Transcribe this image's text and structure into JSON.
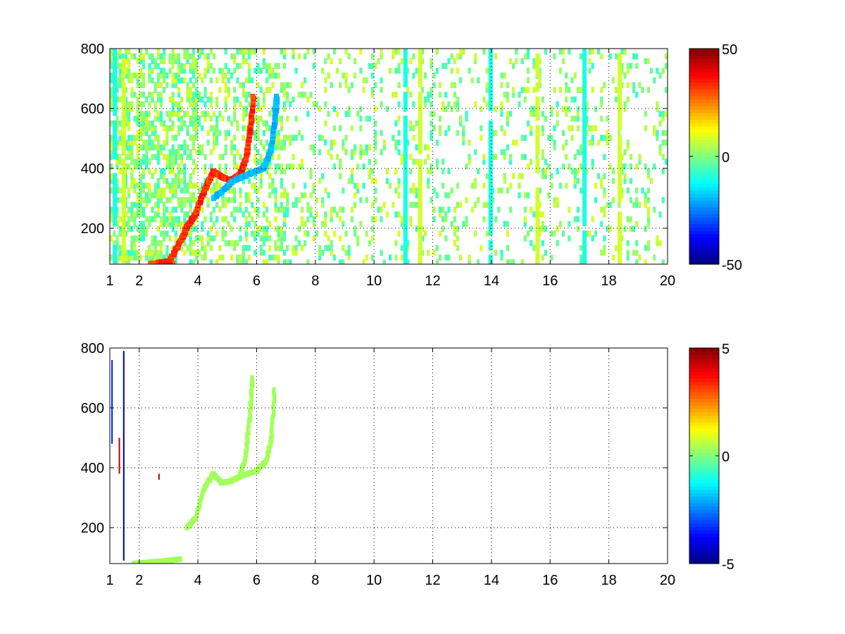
{
  "chart_data": [
    {
      "type": "heatmap",
      "title": "",
      "xlabel": "",
      "ylabel": "",
      "xlim": [
        1,
        20
      ],
      "ylim": [
        80,
        800
      ],
      "xticks": [
        1,
        2,
        4,
        6,
        8,
        10,
        12,
        14,
        16,
        18,
        20
      ],
      "yticks": [
        200,
        400,
        600,
        800
      ],
      "grid": true,
      "colormap": "jet",
      "clim": [
        -50,
        50
      ],
      "colorbar_ticks": [
        -50,
        0,
        50
      ],
      "ridges": [
        {
          "name": "",
          "points": [
            [
              2.6,
              85
            ],
            [
              3.0,
              90
            ],
            [
              3.4,
              160
            ],
            [
              3.6,
              205
            ],
            [
              3.9,
              250
            ],
            [
              4.2,
              330
            ],
            [
              4.5,
              390
            ],
            [
              4.8,
              370
            ],
            [
              5.1,
              360
            ],
            [
              5.4,
              380
            ],
            [
              5.6,
              430
            ],
            [
              5.75,
              520
            ],
            [
              5.85,
              640
            ]
          ],
          "value": 38
        },
        {
          "name": "",
          "points": [
            [
              4.5,
              300
            ],
            [
              5.2,
              360
            ],
            [
              5.8,
              385
            ],
            [
              6.2,
              400
            ],
            [
              6.45,
              460
            ],
            [
              6.6,
              570
            ],
            [
              6.65,
              640
            ]
          ],
          "value": -22
        }
      ],
      "noise_columns": [
        1.1,
        1.4,
        11.0,
        11.5,
        13.9,
        15.5,
        17.1,
        18.3
      ]
    },
    {
      "type": "heatmap",
      "title": "",
      "xlabel": "",
      "ylabel": "",
      "xlim": [
        1,
        20
      ],
      "ylim": [
        80,
        800
      ],
      "xticks": [
        1,
        2,
        4,
        6,
        8,
        10,
        12,
        14,
        16,
        18,
        20
      ],
      "yticks": [
        200,
        400,
        600,
        800
      ],
      "grid": true,
      "colormap": "jet",
      "clim": [
        -5,
        5
      ],
      "colorbar_ticks": [
        -5,
        0,
        5
      ],
      "ridges": [
        {
          "name": "",
          "points": [
            [
              3.6,
              200
            ],
            [
              3.9,
              230
            ],
            [
              4.2,
              330
            ],
            [
              4.5,
              380
            ],
            [
              4.8,
              350
            ],
            [
              5.1,
              355
            ],
            [
              5.4,
              370
            ],
            [
              5.6,
              430
            ],
            [
              5.75,
              560
            ],
            [
              5.85,
              700
            ]
          ],
          "value": 0.4
        },
        {
          "name": "",
          "points": [
            [
              5.4,
              370
            ],
            [
              6.0,
              390
            ],
            [
              6.3,
              420
            ],
            [
              6.5,
              500
            ],
            [
              6.6,
              660
            ]
          ],
          "value": 0.4
        },
        {
          "name": "",
          "points": [
            [
              1.8,
              80
            ],
            [
              2.4,
              85
            ],
            [
              3.0,
              90
            ],
            [
              3.4,
              95
            ]
          ],
          "value": 0.4
        }
      ],
      "spikes": [
        {
          "x": 1.45,
          "y0": 90,
          "y1": 790,
          "value": -5
        },
        {
          "x": 1.3,
          "y0": 380,
          "y1": 500,
          "value": 4.5
        },
        {
          "x": 1.05,
          "y0": 480,
          "y1": 760,
          "value": -3.5
        },
        {
          "x": 2.65,
          "y0": 360,
          "y1": 380,
          "value": 4.5
        }
      ]
    }
  ]
}
